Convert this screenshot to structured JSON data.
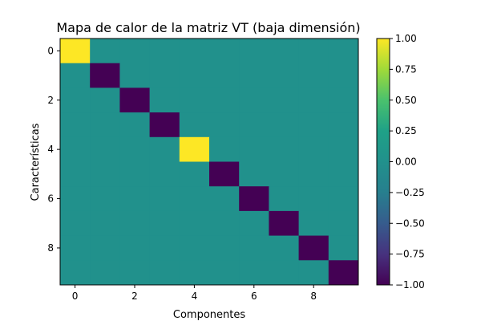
{
  "chart_data": {
    "type": "heatmap",
    "title": "Mapa de calor de la matriz VT (baja dimensión)",
    "xlabel": "Componentes",
    "ylabel": "Características",
    "x_ticks": [
      0,
      2,
      4,
      6,
      8
    ],
    "y_ticks": [
      0,
      2,
      4,
      6,
      8
    ],
    "rows": 10,
    "cols": 10,
    "values": [
      [
        1,
        0,
        0,
        0,
        0,
        0,
        0,
        0,
        0,
        0
      ],
      [
        0,
        -1,
        0,
        0,
        0,
        0,
        0,
        0,
        0,
        0
      ],
      [
        0,
        0,
        -1,
        0,
        0,
        0,
        0,
        0,
        0,
        0
      ],
      [
        0,
        0,
        0,
        -1,
        0,
        0,
        0,
        0,
        0,
        0
      ],
      [
        0,
        0,
        0,
        0,
        1,
        0,
        0,
        0,
        0,
        0
      ],
      [
        0,
        0,
        0,
        0,
        0,
        -1,
        0,
        0,
        0,
        0
      ],
      [
        0,
        0,
        0,
        0,
        0,
        0,
        -1,
        0,
        0,
        0
      ],
      [
        0,
        0,
        0,
        0,
        0,
        0,
        0,
        -1,
        0,
        0
      ],
      [
        0,
        0,
        0,
        0,
        0,
        0,
        0,
        0,
        -1,
        0
      ],
      [
        0,
        0,
        0,
        0,
        0,
        0,
        0,
        0,
        0,
        -1
      ]
    ],
    "colormap": "viridis",
    "vmin": -1,
    "vmax": 1,
    "colorbar_ticks": [
      "1.00",
      "0.75",
      "0.50",
      "0.25",
      "0.00",
      "−0.25",
      "−0.50",
      "−0.75",
      "−1.00"
    ],
    "colorbar_tick_values": [
      1,
      0.75,
      0.5,
      0.25,
      0,
      -0.25,
      -0.5,
      -0.75,
      -1
    ]
  }
}
